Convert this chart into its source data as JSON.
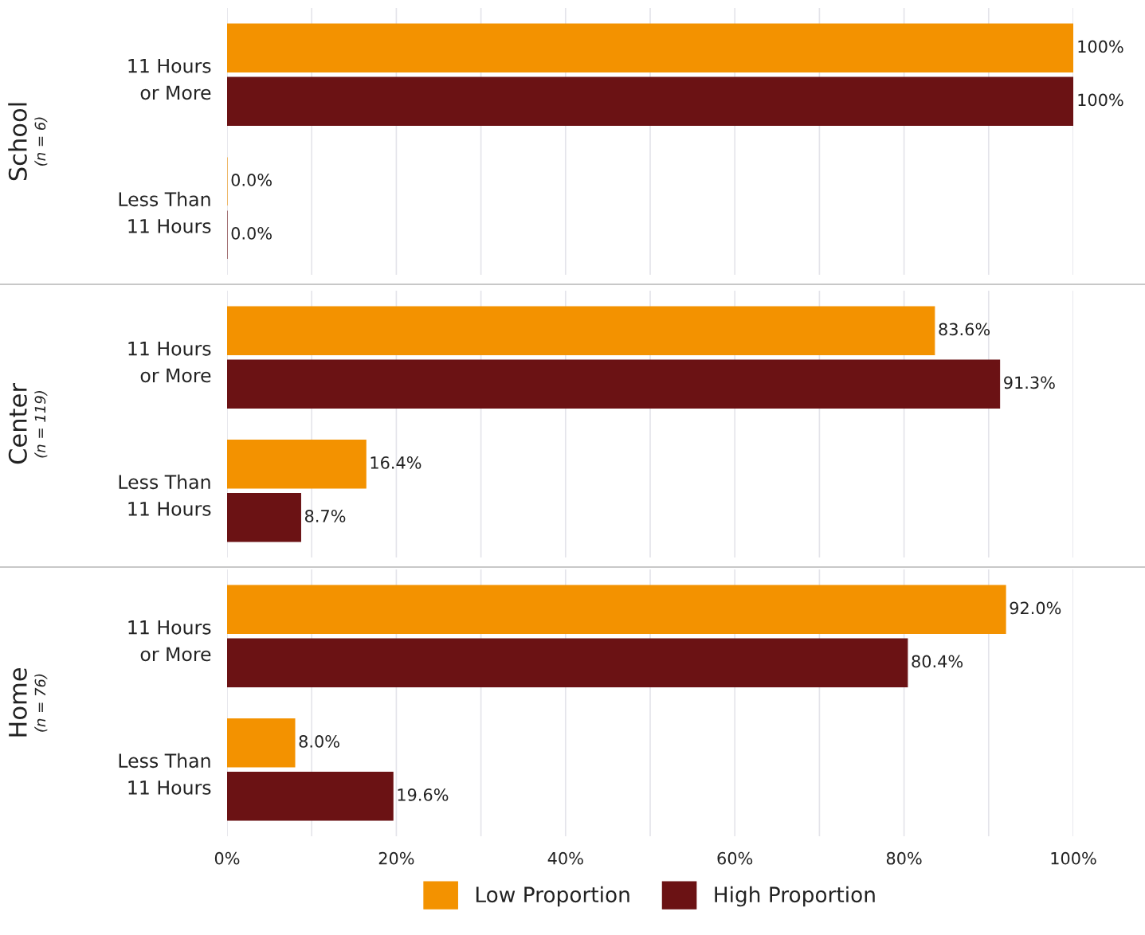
{
  "chart_data": [
    {
      "type": "bar",
      "orientation": "horizontal",
      "ylabel": "School\n(n = 6)",
      "categories": [
        "11 Hours\nor More",
        "Less Than\n11 Hours"
      ],
      "series": [
        {
          "color": "#f39200",
          "values": [
            100,
            0
          ],
          "value_labels": [
            "100%",
            "0.0%"
          ]
        },
        {
          "color": "#6b1214",
          "values": [
            100,
            0
          ],
          "value_labels": [
            "100%",
            "0.0%"
          ]
        }
      ],
      "xlim": [
        0,
        100
      ],
      "xticks": [
        {
          "value": 0,
          "label": null
        },
        {
          "value": 10,
          "label": null
        },
        {
          "value": 20,
          "label": null
        },
        {
          "value": 30,
          "label": null
        },
        {
          "value": 40,
          "label": null
        },
        {
          "value": 50,
          "label": null
        },
        {
          "value": 60,
          "label": null
        },
        {
          "value": 70,
          "label": null
        },
        {
          "value": 80,
          "label": null
        },
        {
          "value": 90,
          "label": null
        },
        {
          "value": 100,
          "label": null
        }
      ],
      "grid": "x",
      "tick_labels": "y"
    },
    {
      "type": "bar",
      "orientation": "horizontal",
      "ylabel": "Center\n(n = 119)",
      "categories": [
        "11 Hours\nor More",
        "Less Than\n11 Hours"
      ],
      "series": [
        {
          "color": "#f39200",
          "values": [
            83.6,
            16.4
          ],
          "value_labels": [
            "83.6%",
            "16.4%"
          ]
        },
        {
          "color": "#6b1214",
          "values": [
            91.3,
            8.7
          ],
          "value_labels": [
            "91.3%",
            "8.7%"
          ]
        }
      ],
      "xlim": [
        0,
        100
      ],
      "xticks": [
        {
          "value": 0,
          "label": null
        },
        {
          "value": 10,
          "label": null
        },
        {
          "value": 20,
          "label": null
        },
        {
          "value": 30,
          "label": null
        },
        {
          "value": 40,
          "label": null
        },
        {
          "value": 50,
          "label": null
        },
        {
          "value": 60,
          "label": null
        },
        {
          "value": 70,
          "label": null
        },
        {
          "value": 80,
          "label": null
        },
        {
          "value": 90,
          "label": null
        },
        {
          "value": 100,
          "label": null
        }
      ],
      "grid": "x",
      "tick_labels": "y"
    },
    {
      "type": "bar",
      "orientation": "horizontal",
      "ylabel": "Home\n(n = 76)",
      "categories": [
        "11 Hours\nor More",
        "Less Than\n11 Hours"
      ],
      "series": [
        {
          "name": "Low Proportion",
          "color": "#f39200",
          "values": [
            92.0,
            8.0
          ],
          "value_labels": [
            "92.0%",
            "8.0%"
          ]
        },
        {
          "name": "High Proportion",
          "color": "#6b1214",
          "values": [
            80.4,
            19.6
          ],
          "value_labels": [
            "80.4%",
            "19.6%"
          ]
        }
      ],
      "xlim": [
        0,
        100
      ],
      "xticks": [
        {
          "value": 0,
          "label": "0%"
        },
        {
          "value": 10,
          "label": null
        },
        {
          "value": 20,
          "label": "20%"
        },
        {
          "value": 30,
          "label": null
        },
        {
          "value": 40,
          "label": "40%"
        },
        {
          "value": 50,
          "label": null
        },
        {
          "value": 60,
          "label": "60%"
        },
        {
          "value": 70,
          "label": null
        },
        {
          "value": 80,
          "label": "80%"
        },
        {
          "value": 90,
          "label": null
        },
        {
          "value": 100,
          "label": "100%"
        }
      ],
      "grid": "x",
      "legend": "bottom"
    }
  ]
}
